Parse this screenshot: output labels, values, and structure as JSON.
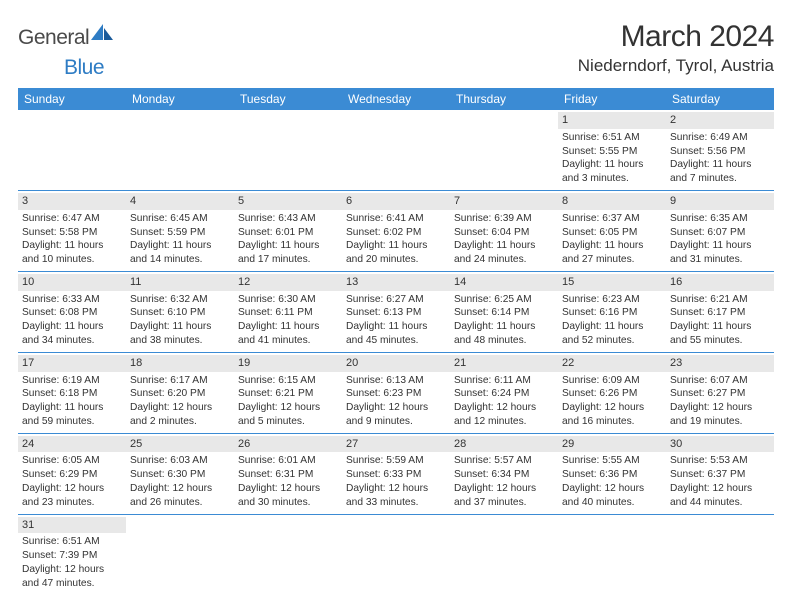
{
  "logo": {
    "general": "General",
    "blue": "Blue"
  },
  "title": "March 2024",
  "location": "Niederndorf, Tyrol, Austria",
  "colors": {
    "header_bg": "#3b8bd4",
    "header_text": "#ffffff",
    "cell_shade": "#e8e8e8",
    "border": "#3b8bd4",
    "logo_blue": "#2e7cc4"
  },
  "day_headers": [
    "Sunday",
    "Monday",
    "Tuesday",
    "Wednesday",
    "Thursday",
    "Friday",
    "Saturday"
  ],
  "weeks": [
    [
      {
        "n": "",
        "sr": "",
        "ss": "",
        "dl": ""
      },
      {
        "n": "",
        "sr": "",
        "ss": "",
        "dl": ""
      },
      {
        "n": "",
        "sr": "",
        "ss": "",
        "dl": ""
      },
      {
        "n": "",
        "sr": "",
        "ss": "",
        "dl": ""
      },
      {
        "n": "",
        "sr": "",
        "ss": "",
        "dl": ""
      },
      {
        "n": "1",
        "sr": "Sunrise: 6:51 AM",
        "ss": "Sunset: 5:55 PM",
        "dl": "Daylight: 11 hours and 3 minutes."
      },
      {
        "n": "2",
        "sr": "Sunrise: 6:49 AM",
        "ss": "Sunset: 5:56 PM",
        "dl": "Daylight: 11 hours and 7 minutes."
      }
    ],
    [
      {
        "n": "3",
        "sr": "Sunrise: 6:47 AM",
        "ss": "Sunset: 5:58 PM",
        "dl": "Daylight: 11 hours and 10 minutes."
      },
      {
        "n": "4",
        "sr": "Sunrise: 6:45 AM",
        "ss": "Sunset: 5:59 PM",
        "dl": "Daylight: 11 hours and 14 minutes."
      },
      {
        "n": "5",
        "sr": "Sunrise: 6:43 AM",
        "ss": "Sunset: 6:01 PM",
        "dl": "Daylight: 11 hours and 17 minutes."
      },
      {
        "n": "6",
        "sr": "Sunrise: 6:41 AM",
        "ss": "Sunset: 6:02 PM",
        "dl": "Daylight: 11 hours and 20 minutes."
      },
      {
        "n": "7",
        "sr": "Sunrise: 6:39 AM",
        "ss": "Sunset: 6:04 PM",
        "dl": "Daylight: 11 hours and 24 minutes."
      },
      {
        "n": "8",
        "sr": "Sunrise: 6:37 AM",
        "ss": "Sunset: 6:05 PM",
        "dl": "Daylight: 11 hours and 27 minutes."
      },
      {
        "n": "9",
        "sr": "Sunrise: 6:35 AM",
        "ss": "Sunset: 6:07 PM",
        "dl": "Daylight: 11 hours and 31 minutes."
      }
    ],
    [
      {
        "n": "10",
        "sr": "Sunrise: 6:33 AM",
        "ss": "Sunset: 6:08 PM",
        "dl": "Daylight: 11 hours and 34 minutes."
      },
      {
        "n": "11",
        "sr": "Sunrise: 6:32 AM",
        "ss": "Sunset: 6:10 PM",
        "dl": "Daylight: 11 hours and 38 minutes."
      },
      {
        "n": "12",
        "sr": "Sunrise: 6:30 AM",
        "ss": "Sunset: 6:11 PM",
        "dl": "Daylight: 11 hours and 41 minutes."
      },
      {
        "n": "13",
        "sr": "Sunrise: 6:27 AM",
        "ss": "Sunset: 6:13 PM",
        "dl": "Daylight: 11 hours and 45 minutes."
      },
      {
        "n": "14",
        "sr": "Sunrise: 6:25 AM",
        "ss": "Sunset: 6:14 PM",
        "dl": "Daylight: 11 hours and 48 minutes."
      },
      {
        "n": "15",
        "sr": "Sunrise: 6:23 AM",
        "ss": "Sunset: 6:16 PM",
        "dl": "Daylight: 11 hours and 52 minutes."
      },
      {
        "n": "16",
        "sr": "Sunrise: 6:21 AM",
        "ss": "Sunset: 6:17 PM",
        "dl": "Daylight: 11 hours and 55 minutes."
      }
    ],
    [
      {
        "n": "17",
        "sr": "Sunrise: 6:19 AM",
        "ss": "Sunset: 6:18 PM",
        "dl": "Daylight: 11 hours and 59 minutes."
      },
      {
        "n": "18",
        "sr": "Sunrise: 6:17 AM",
        "ss": "Sunset: 6:20 PM",
        "dl": "Daylight: 12 hours and 2 minutes."
      },
      {
        "n": "19",
        "sr": "Sunrise: 6:15 AM",
        "ss": "Sunset: 6:21 PM",
        "dl": "Daylight: 12 hours and 5 minutes."
      },
      {
        "n": "20",
        "sr": "Sunrise: 6:13 AM",
        "ss": "Sunset: 6:23 PM",
        "dl": "Daylight: 12 hours and 9 minutes."
      },
      {
        "n": "21",
        "sr": "Sunrise: 6:11 AM",
        "ss": "Sunset: 6:24 PM",
        "dl": "Daylight: 12 hours and 12 minutes."
      },
      {
        "n": "22",
        "sr": "Sunrise: 6:09 AM",
        "ss": "Sunset: 6:26 PM",
        "dl": "Daylight: 12 hours and 16 minutes."
      },
      {
        "n": "23",
        "sr": "Sunrise: 6:07 AM",
        "ss": "Sunset: 6:27 PM",
        "dl": "Daylight: 12 hours and 19 minutes."
      }
    ],
    [
      {
        "n": "24",
        "sr": "Sunrise: 6:05 AM",
        "ss": "Sunset: 6:29 PM",
        "dl": "Daylight: 12 hours and 23 minutes."
      },
      {
        "n": "25",
        "sr": "Sunrise: 6:03 AM",
        "ss": "Sunset: 6:30 PM",
        "dl": "Daylight: 12 hours and 26 minutes."
      },
      {
        "n": "26",
        "sr": "Sunrise: 6:01 AM",
        "ss": "Sunset: 6:31 PM",
        "dl": "Daylight: 12 hours and 30 minutes."
      },
      {
        "n": "27",
        "sr": "Sunrise: 5:59 AM",
        "ss": "Sunset: 6:33 PM",
        "dl": "Daylight: 12 hours and 33 minutes."
      },
      {
        "n": "28",
        "sr": "Sunrise: 5:57 AM",
        "ss": "Sunset: 6:34 PM",
        "dl": "Daylight: 12 hours and 37 minutes."
      },
      {
        "n": "29",
        "sr": "Sunrise: 5:55 AM",
        "ss": "Sunset: 6:36 PM",
        "dl": "Daylight: 12 hours and 40 minutes."
      },
      {
        "n": "30",
        "sr": "Sunrise: 5:53 AM",
        "ss": "Sunset: 6:37 PM",
        "dl": "Daylight: 12 hours and 44 minutes."
      }
    ],
    [
      {
        "n": "31",
        "sr": "Sunrise: 6:51 AM",
        "ss": "Sunset: 7:39 PM",
        "dl": "Daylight: 12 hours and 47 minutes."
      },
      {
        "n": "",
        "sr": "",
        "ss": "",
        "dl": ""
      },
      {
        "n": "",
        "sr": "",
        "ss": "",
        "dl": ""
      },
      {
        "n": "",
        "sr": "",
        "ss": "",
        "dl": ""
      },
      {
        "n": "",
        "sr": "",
        "ss": "",
        "dl": ""
      },
      {
        "n": "",
        "sr": "",
        "ss": "",
        "dl": ""
      },
      {
        "n": "",
        "sr": "",
        "ss": "",
        "dl": ""
      }
    ]
  ]
}
